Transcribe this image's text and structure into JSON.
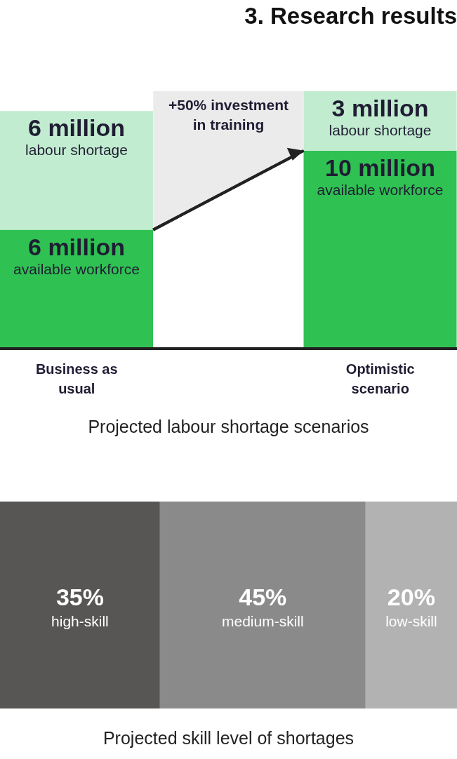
{
  "chart_data": [
    {
      "type": "bar",
      "stacked": true,
      "title": "3. Research results",
      "xlabel": "Projected labour shortage scenarios",
      "categories": [
        "Business as usual",
        "Optimistic scenario"
      ],
      "annotations": [
        "+50% investment in training"
      ],
      "series": [
        {
          "name": "available workforce",
          "color": "#2fc152",
          "values": [
            6,
            10
          ],
          "value_labels": [
            "6 million",
            "10 million"
          ]
        },
        {
          "name": "labour shortage",
          "color": "#c2ecd0",
          "values": [
            6,
            3
          ],
          "value_labels": [
            "6 million",
            "3 million"
          ]
        }
      ]
    },
    {
      "type": "bar",
      "orientation": "horizontal",
      "stacked": true,
      "xlabel": "Projected skill level of shortages",
      "categories": [
        null
      ],
      "series": [
        {
          "name": "high-skill",
          "color": "#575655",
          "values": [
            35
          ],
          "value_labels": [
            "35%"
          ]
        },
        {
          "name": "medium-skill",
          "color": "#8a8a8a",
          "values": [
            45
          ],
          "value_labels": [
            "45%"
          ]
        },
        {
          "name": "low-skill",
          "color": "#b2b2b2",
          "values": [
            20
          ],
          "value_labels": [
            "20%"
          ]
        }
      ]
    }
  ]
}
